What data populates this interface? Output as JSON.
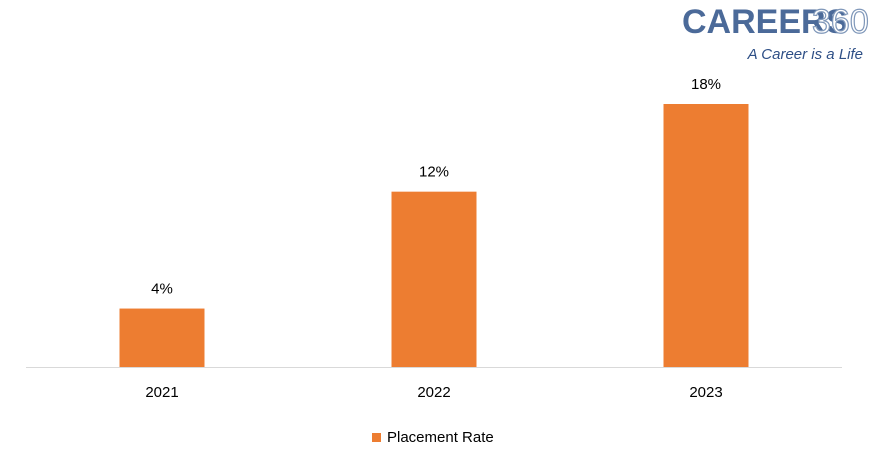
{
  "logo": {
    "brand": "CAREERS",
    "number": "360",
    "tagline": "A Career is a Life"
  },
  "chart_data": {
    "type": "bar",
    "categories": [
      "2021",
      "2022",
      "2023"
    ],
    "series": [
      {
        "name": "Placement Rate",
        "color": "#ed7d31",
        "values": [
          4,
          12,
          18
        ],
        "value_labels": [
          "4%",
          "12%",
          "18%"
        ]
      }
    ],
    "legend": "bottom"
  }
}
